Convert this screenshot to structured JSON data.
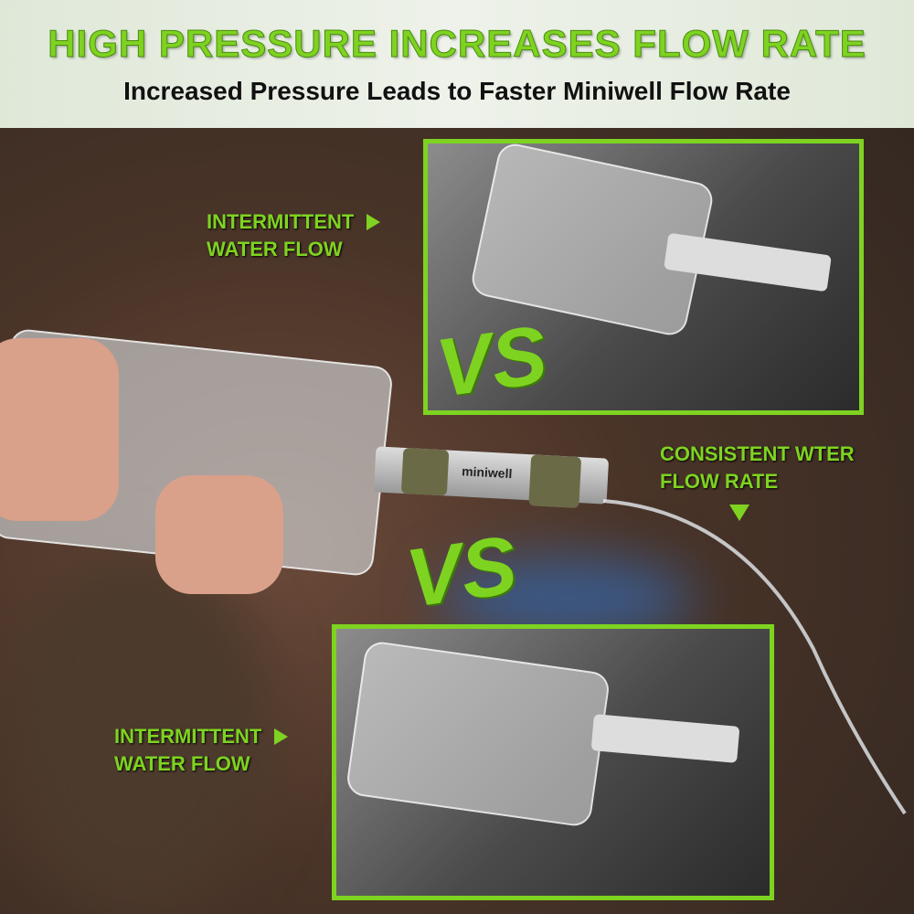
{
  "header": {
    "title": "HIGH PRESSURE INCREASES FLOW RATE",
    "subtitle": "Increased Pressure Leads to Faster Miniwell Flow Rate"
  },
  "labels": {
    "top_left": [
      "INTERMITTENT",
      "WATER FLOW"
    ],
    "right": [
      "CONSISTENT WTER",
      "FLOW RATE"
    ],
    "bottom_left": [
      "INTERMITTENT",
      "WATER FLOW"
    ]
  },
  "vs_text": "VS",
  "product_logo": "miniwell",
  "colors": {
    "accent": "#7ed321",
    "header_bg": "#e6ede0"
  }
}
